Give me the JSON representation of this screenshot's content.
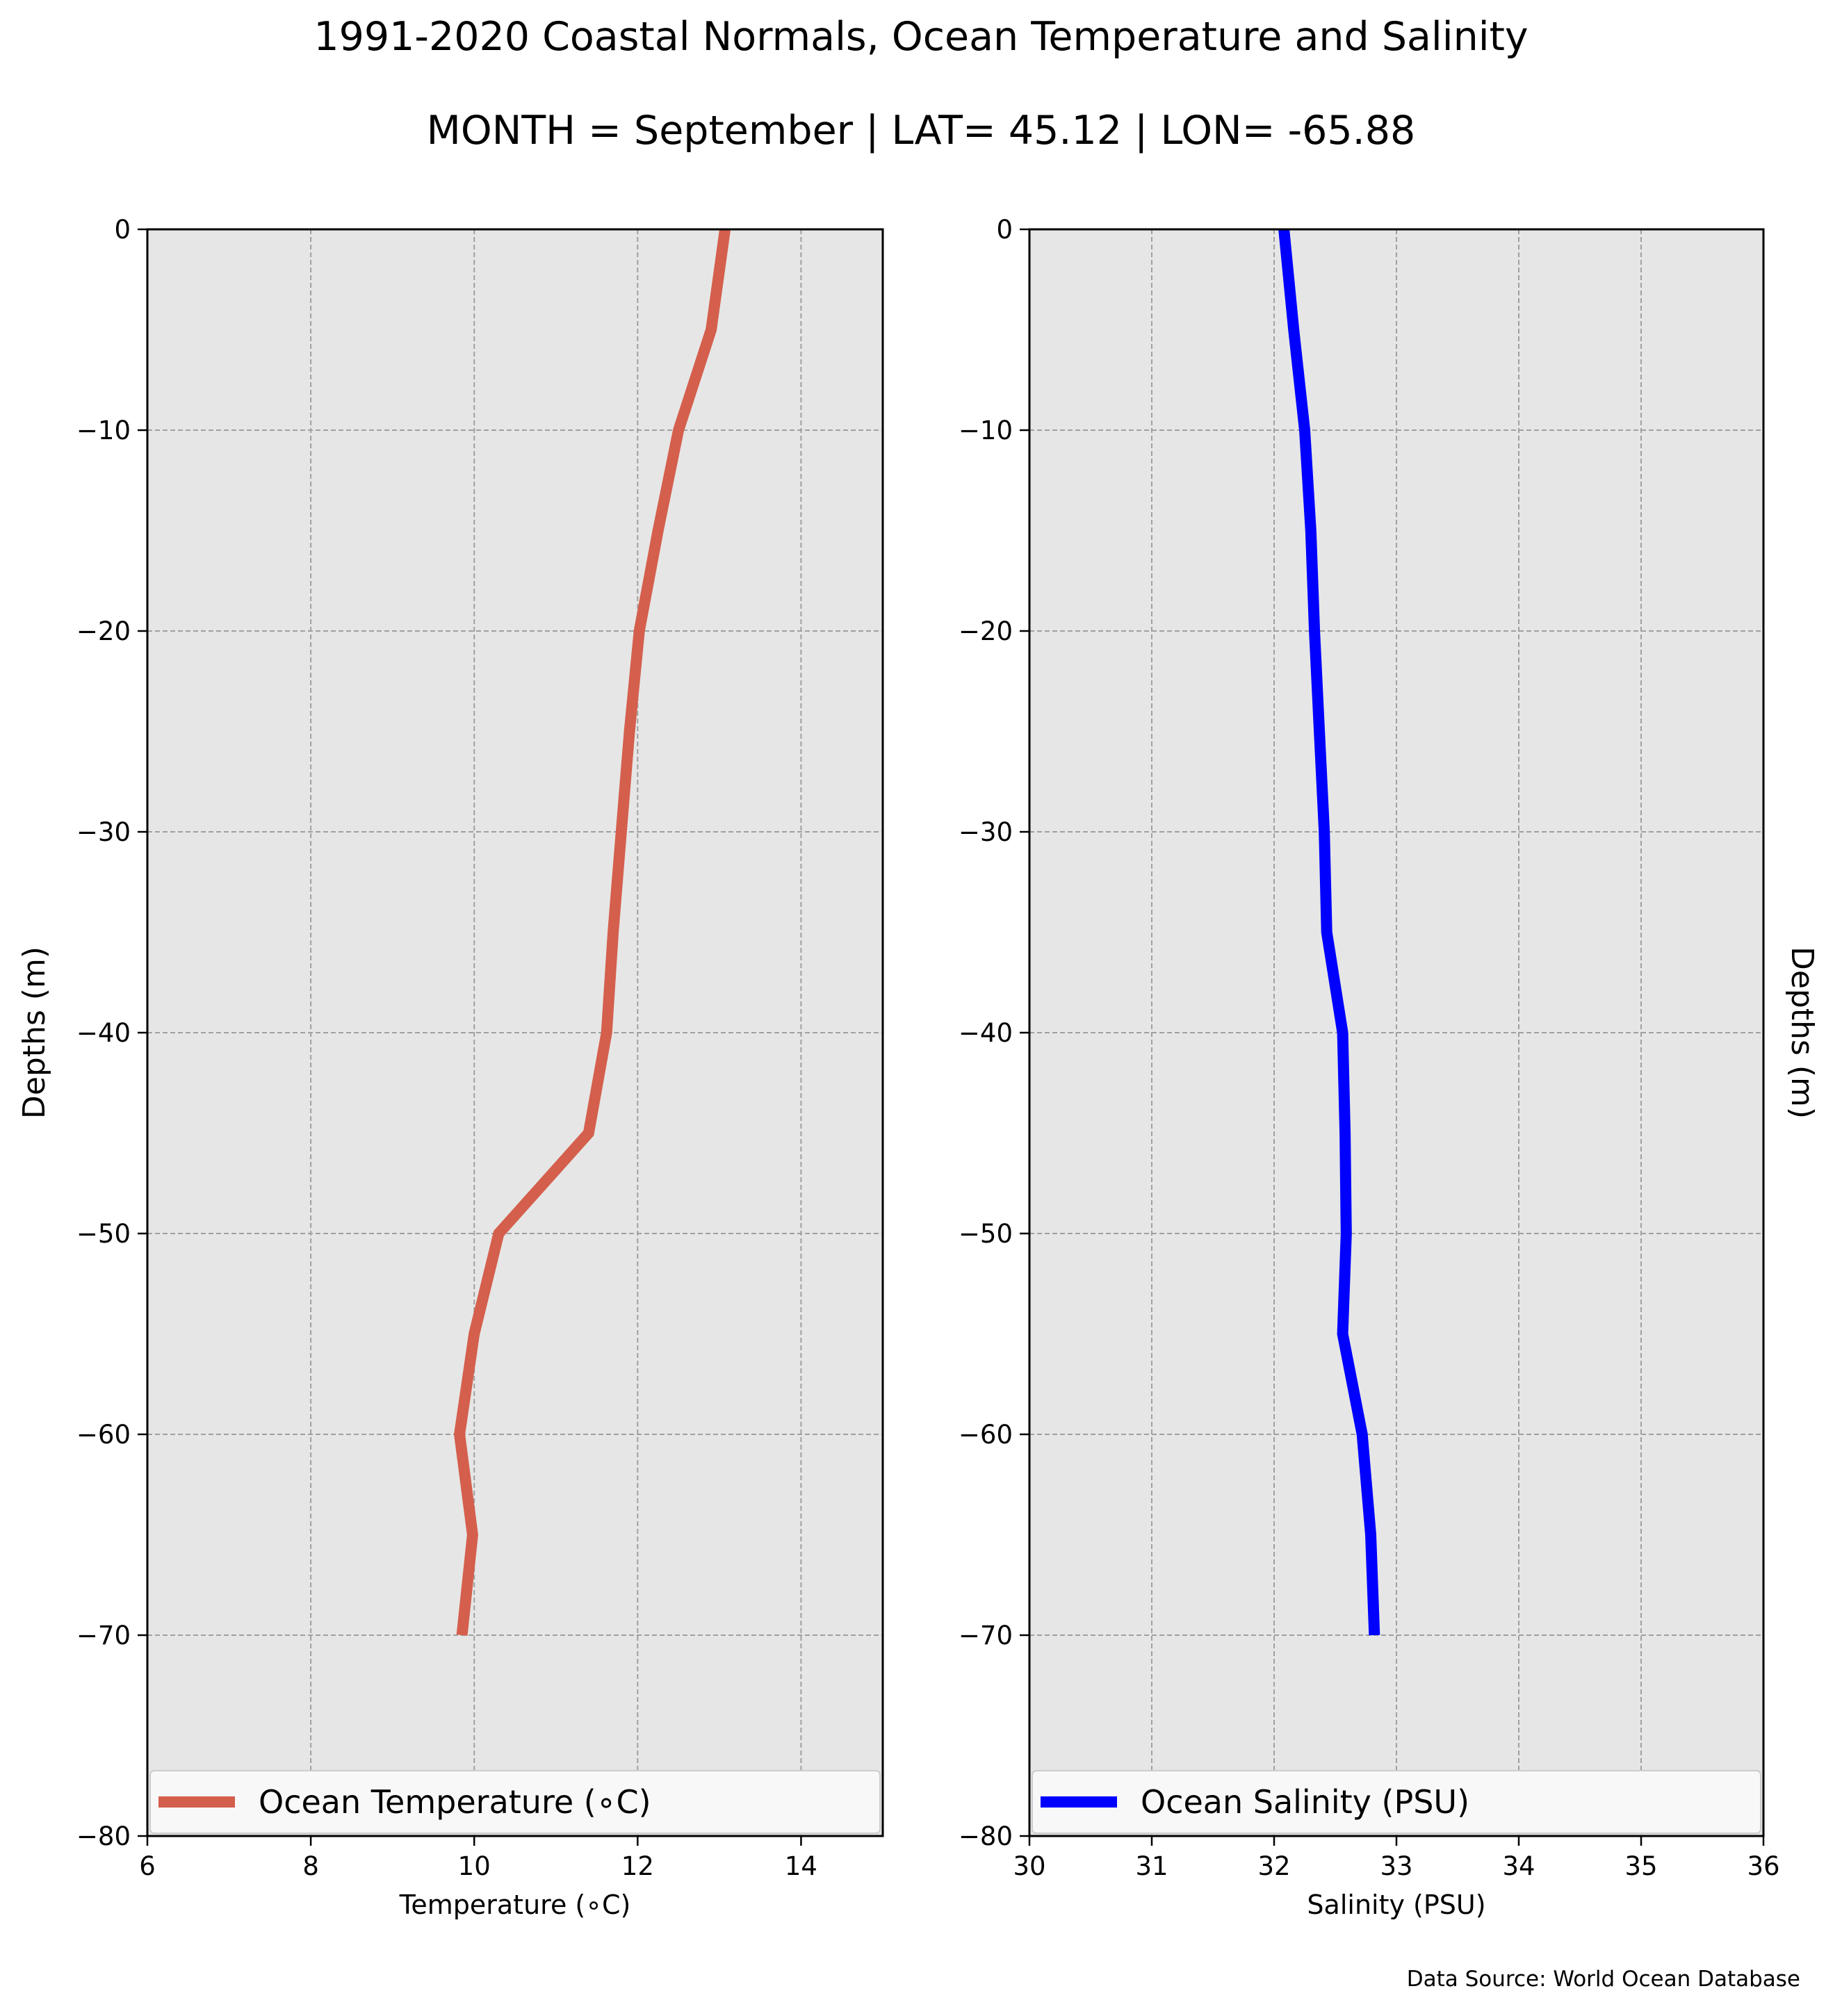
{
  "title": "1991-2020 Coastal Normals, Ocean Temperature and Salinity",
  "subtitle": "MONTH = September | LAT= 45.12 | LON= -65.88",
  "source_note": "Data Source: World Ocean Database",
  "chart_data": [
    {
      "type": "line",
      "xlabel": "Temperature (∘C)",
      "ylabel": "Depths (m)",
      "xlim": [
        6,
        15
      ],
      "ylim": [
        -80,
        0
      ],
      "xticks": [
        6,
        8,
        10,
        12,
        14
      ],
      "xtick_labels": [
        "6",
        "8",
        "10",
        "12",
        "14"
      ],
      "yticks": [
        0,
        -10,
        -20,
        -30,
        -40,
        -50,
        -60,
        -70,
        -80
      ],
      "ytick_labels": [
        "0",
        "−10",
        "−20",
        "−30",
        "−40",
        "−50",
        "−60",
        "−70",
        "−80"
      ],
      "grid": true,
      "legend": "lower center",
      "ylabel_side": "left",
      "series": [
        {
          "name": "Ocean Temperature (∘C)",
          "color": "#d45f4c",
          "x": [
            13.07,
            12.9,
            12.5,
            12.25,
            12.02,
            11.9,
            11.8,
            11.7,
            11.62,
            11.4,
            10.3,
            10.0,
            9.82,
            9.98,
            9.85
          ],
          "y": [
            0,
            -5,
            -10,
            -15,
            -20,
            -25,
            -30,
            -35,
            -40,
            -45,
            -50,
            -55,
            -60,
            -65,
            -70
          ]
        }
      ]
    },
    {
      "type": "line",
      "xlabel": "Salinity (PSU)",
      "ylabel": "Depths (m)",
      "xlim": [
        30,
        36
      ],
      "ylim": [
        -80,
        0
      ],
      "xticks": [
        30,
        31,
        32,
        33,
        34,
        35,
        36
      ],
      "xtick_labels": [
        "30",
        "31",
        "32",
        "33",
        "34",
        "35",
        "36"
      ],
      "yticks": [
        0,
        -10,
        -20,
        -30,
        -40,
        -50,
        -60,
        -70,
        -80
      ],
      "ytick_labels": [
        "0",
        "−10",
        "−20",
        "−30",
        "−40",
        "−50",
        "−60",
        "−70",
        "−80"
      ],
      "grid": true,
      "legend": "lower center",
      "ylabel_side": "right",
      "series": [
        {
          "name": "Ocean Salinity (PSU)",
          "color": "#0000ff",
          "x": [
            32.08,
            32.16,
            32.25,
            32.3,
            32.33,
            32.37,
            32.41,
            32.43,
            32.56,
            32.58,
            32.59,
            32.56,
            32.72,
            32.79,
            32.82
          ],
          "y": [
            0,
            -5,
            -10,
            -15,
            -20,
            -25,
            -30,
            -35,
            -40,
            -45,
            -50,
            -55,
            -60,
            -65,
            -70
          ]
        }
      ]
    }
  ]
}
